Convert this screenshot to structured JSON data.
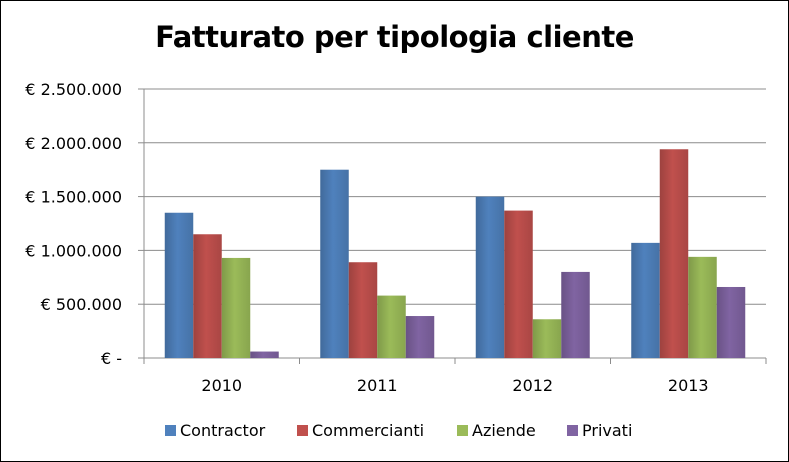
{
  "chart_data": {
    "type": "bar",
    "title": "Fatturato per tipologia cliente",
    "xlabel": "",
    "ylabel": "",
    "categories": [
      "2010",
      "2011",
      "2012",
      "2013"
    ],
    "series": [
      {
        "name": "Contractor",
        "color": "#4F81BD",
        "values": [
          1350000,
          1750000,
          1500000,
          1070000
        ]
      },
      {
        "name": "Commercianti",
        "color": "#C0504D",
        "values": [
          1150000,
          890000,
          1370000,
          1940000
        ]
      },
      {
        "name": "Aziende",
        "color": "#9BBB59",
        "values": [
          930000,
          580000,
          360000,
          940000
        ]
      },
      {
        "name": "Privati",
        "color": "#8064A2",
        "values": [
          60000,
          390000,
          800000,
          660000
        ]
      }
    ],
    "ylim": [
      0,
      2500000
    ],
    "yticks": [
      0,
      500000,
      1000000,
      1500000,
      2000000,
      2500000
    ],
    "ytick_labels": [
      "€ -",
      "€ 500.000",
      "€ 1.000.000",
      "€ 1.500.000",
      "€ 2.000.000",
      "€ 2.500.000"
    ],
    "grid": true,
    "legend_position": "bottom"
  }
}
